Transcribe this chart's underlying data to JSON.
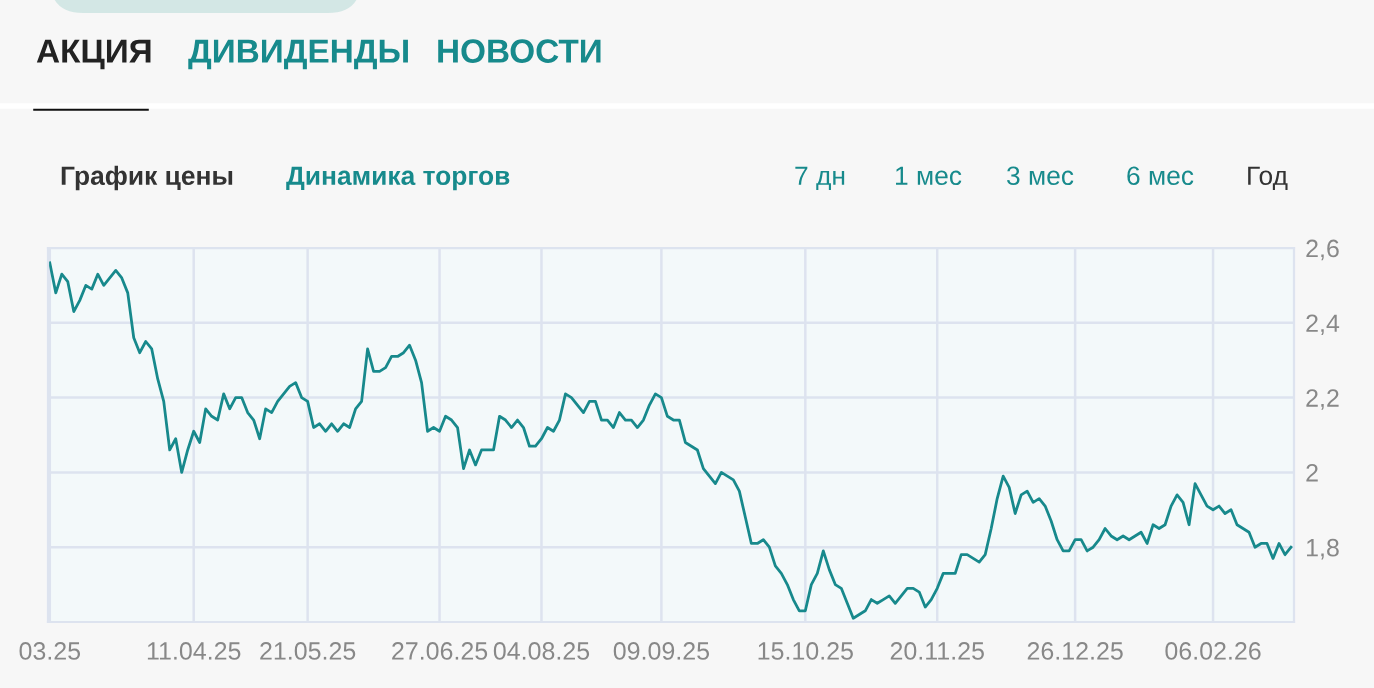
{
  "chart_data": {
    "type": "line",
    "annotations": [
      "АКЦИЯ",
      "ДИВИДЕНДЫ",
      "НОВОСТИ",
      "График цены",
      "Динамика торгов",
      "7 дн",
      "1 мес",
      "3 мес",
      "6 мес",
      "Год"
    ],
    "series": [
      {
        "color": "#17898c",
        "values": [
          2.56,
          2.48,
          2.53,
          2.51,
          2.43,
          2.46,
          2.5,
          2.49,
          2.53,
          2.5,
          2.52,
          2.54,
          2.52,
          2.48,
          2.36,
          2.32,
          2.35,
          2.33,
          2.25,
          2.19,
          2.06,
          2.09,
          2.0,
          2.06,
          2.11,
          2.08,
          2.17,
          2.15,
          2.14,
          2.21,
          2.17,
          2.2,
          2.2,
          2.16,
          2.14,
          2.09,
          2.17,
          2.16,
          2.19,
          2.21,
          2.23,
          2.24,
          2.2,
          2.19,
          2.12,
          2.13,
          2.11,
          2.13,
          2.11,
          2.13,
          2.12,
          2.17,
          2.19,
          2.33,
          2.27,
          2.27,
          2.28,
          2.31,
          2.31,
          2.32,
          2.34,
          2.3,
          2.24,
          2.11,
          2.12,
          2.11,
          2.15,
          2.14,
          2.12,
          2.01,
          2.06,
          2.02,
          2.06,
          2.06,
          2.06,
          2.15,
          2.14,
          2.12,
          2.14,
          2.12,
          2.07,
          2.07,
          2.09,
          2.12,
          2.11,
          2.14,
          2.21,
          2.2,
          2.18,
          2.16,
          2.19,
          2.19,
          2.14,
          2.14,
          2.12,
          2.16,
          2.14,
          2.14,
          2.12,
          2.14,
          2.18,
          2.21,
          2.2,
          2.15,
          2.14,
          2.14,
          2.08,
          2.07,
          2.06,
          2.01,
          1.99,
          1.97,
          2.0,
          1.99,
          1.98,
          1.95,
          1.88,
          1.81,
          1.81,
          1.82,
          1.8,
          1.75,
          1.73,
          1.7,
          1.66,
          1.63,
          1.63,
          1.7,
          1.73,
          1.79,
          1.74,
          1.7,
          1.69,
          1.65,
          1.61,
          1.62,
          1.63,
          1.66,
          1.65,
          1.66,
          1.67,
          1.65,
          1.67,
          1.69,
          1.69,
          1.68,
          1.64,
          1.66,
          1.69,
          1.73,
          1.73,
          1.73,
          1.78,
          1.78,
          1.77,
          1.76,
          1.78,
          1.85,
          1.93,
          1.99,
          1.96,
          1.89,
          1.94,
          1.95,
          1.92,
          1.93,
          1.91,
          1.87,
          1.82,
          1.79,
          1.79,
          1.82,
          1.82,
          1.79,
          1.8,
          1.82,
          1.85,
          1.83,
          1.82,
          1.83,
          1.82,
          1.83,
          1.84,
          1.81,
          1.86,
          1.85,
          1.86,
          1.91,
          1.94,
          1.92,
          1.86,
          1.97,
          1.94,
          1.91,
          1.9,
          1.91,
          1.89,
          1.9,
          1.86,
          1.85,
          1.84,
          1.8,
          1.81,
          1.81,
          1.77,
          1.81,
          1.78,
          1.8
        ]
      }
    ],
    "categories": [
      "03.25",
      null,
      null,
      null,
      null,
      null,
      null,
      null,
      null,
      null,
      null,
      null,
      null,
      null,
      null,
      null,
      null,
      null,
      null,
      null,
      null,
      null,
      null,
      null,
      "11.04.25",
      null,
      null,
      null,
      null,
      null,
      null,
      null,
      null,
      null,
      null,
      null,
      null,
      null,
      null,
      null,
      null,
      null,
      null,
      "21.05.25",
      null,
      null,
      null,
      null,
      null,
      null,
      null,
      null,
      null,
      null,
      null,
      null,
      null,
      null,
      null,
      null,
      null,
      null,
      null,
      null,
      null,
      "27.06.25",
      null,
      null,
      null,
      null,
      null,
      null,
      null,
      null,
      null,
      null,
      null,
      null,
      null,
      null,
      null,
      null,
      "04.08.25",
      null,
      null,
      null,
      null,
      null,
      null,
      null,
      null,
      null,
      null,
      null,
      null,
      null,
      null,
      null,
      null,
      null,
      null,
      null,
      "09.09.25",
      null,
      null,
      null,
      null,
      null,
      null,
      null,
      null,
      null,
      null,
      null,
      null,
      null,
      null,
      null,
      null,
      null,
      null,
      null,
      null,
      null,
      null,
      null,
      "15.10.25",
      null,
      null,
      null,
      null,
      null,
      null,
      null,
      null,
      null,
      null,
      null,
      null,
      null,
      null,
      null,
      null,
      null,
      null,
      null,
      null,
      null,
      "20.11.25",
      null,
      null,
      null,
      null,
      null,
      null,
      null,
      null,
      null,
      null,
      null,
      null,
      null,
      null,
      null,
      null,
      null,
      null,
      null,
      null,
      null,
      null,
      "26.12.25",
      null,
      null,
      null,
      null,
      null,
      null,
      null,
      null,
      null,
      null,
      null,
      null,
      null,
      null,
      null,
      null,
      null,
      null,
      null,
      null,
      null,
      null,
      "06.02.26",
      null,
      null,
      null,
      null,
      null,
      null,
      null,
      null,
      null,
      null,
      null,
      null,
      null
    ],
    "ylim": [
      1.6,
      2.6
    ],
    "yticks": [
      {
        "value": 1.8,
        "label": "1,8"
      },
      {
        "value": 2,
        "label": "2"
      },
      {
        "value": 2.2,
        "label": "2,2"
      },
      {
        "value": 2.4,
        "label": "2,4"
      },
      {
        "value": 2.6,
        "label": "2,6"
      }
    ],
    "grid": true,
    "marker": "none",
    "line_style": "solid",
    "legend": false
  }
}
